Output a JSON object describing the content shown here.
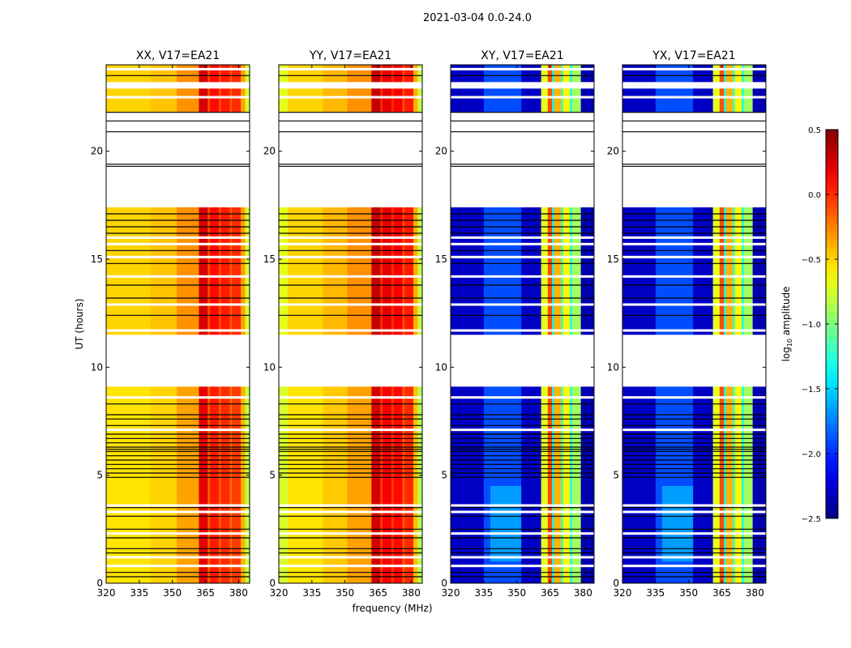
{
  "chart_data": {
    "type": "heatmap",
    "title": "2021-03-04 0.0-24.0",
    "xlabel": "frequency (MHz)",
    "ylabel": "UT (hours)",
    "xlim": [
      320,
      385
    ],
    "ylim": [
      0,
      24
    ],
    "xticks": [
      "320",
      "335",
      "350",
      "365",
      "380"
    ],
    "yticks": [
      "0",
      "5",
      "10",
      "15",
      "20"
    ],
    "colormap": "jet",
    "colorbar": {
      "label_main": "log",
      "label_sub": "10",
      "label_rest": " amplitude",
      "range": [
        -2.5,
        0.5
      ],
      "ticks": [
        "0.5",
        "0.0",
        "−0.5",
        "−1.0",
        "−1.5",
        "−2.0",
        "−2.5"
      ],
      "tick_values": [
        0.5,
        0.0,
        -0.5,
        -1.0,
        -1.5,
        -2.0,
        -2.5
      ]
    },
    "data_segments_hours": [
      [
        0,
        9.1
      ],
      [
        11.5,
        17.4
      ],
      [
        21.8,
        22.9
      ],
      [
        23.2,
        24
      ]
    ],
    "flag_lines_hours": [
      0.3,
      0.5,
      1.4,
      1.6,
      2.1,
      2.5,
      3.1,
      3.5,
      4.9,
      5.1,
      5.3,
      5.5,
      5.7,
      5.9,
      6.1,
      6.2,
      6.3,
      6.5,
      6.7,
      6.9,
      7.3,
      7.6,
      7.8,
      8.3,
      12.4,
      13.2,
      13.8,
      14.8,
      15.4,
      16.2,
      16.5,
      16.8,
      17.1,
      19.3,
      19.4,
      20.9,
      21.4,
      21.8,
      23.5
    ],
    "panels": [
      {
        "title": "XX, V17=EA21",
        "kind": "auto",
        "bands": [
          [
            320,
            340,
            -0.5
          ],
          [
            340,
            352,
            -0.45
          ],
          [
            352,
            362,
            -0.3
          ],
          [
            362,
            366,
            0.25
          ],
          [
            366,
            367,
            -0.1
          ],
          [
            367,
            371,
            0.1
          ],
          [
            371,
            372,
            -0.1
          ],
          [
            372,
            376,
            0.05
          ],
          [
            376,
            377,
            -0.15
          ],
          [
            377,
            381,
            0.0
          ],
          [
            381,
            383,
            -0.35
          ],
          [
            383,
            385,
            -0.75
          ]
        ]
      },
      {
        "title": "YY, V17=EA21",
        "kind": "auto",
        "bands": [
          [
            320,
            324,
            -0.7
          ],
          [
            324,
            340,
            -0.5
          ],
          [
            340,
            351,
            -0.42
          ],
          [
            351,
            362,
            -0.3
          ],
          [
            362,
            366,
            0.3
          ],
          [
            366,
            367,
            0.0
          ],
          [
            367,
            371,
            0.2
          ],
          [
            371,
            372,
            0.0
          ],
          [
            372,
            376,
            0.15
          ],
          [
            376,
            377,
            -0.1
          ],
          [
            377,
            381,
            0.05
          ],
          [
            381,
            383,
            -0.4
          ],
          [
            383,
            385,
            -0.8
          ]
        ]
      },
      {
        "title": "XY, V17=EA21",
        "kind": "cross",
        "bands": [
          [
            320,
            335,
            -2.3
          ],
          [
            335,
            352,
            -1.9
          ],
          [
            352,
            361,
            -2.3
          ],
          [
            361,
            364,
            -0.7
          ],
          [
            364,
            366,
            -0.1
          ],
          [
            366,
            367,
            -1.3
          ],
          [
            367,
            370,
            -0.4
          ],
          [
            370,
            371,
            -1.2
          ],
          [
            371,
            374,
            -0.6
          ],
          [
            374,
            375,
            -1.3
          ],
          [
            375,
            379,
            -0.9
          ],
          [
            379,
            385,
            -2.35
          ]
        ]
      },
      {
        "title": "YX, V17=EA21",
        "kind": "cross",
        "bands": [
          [
            320,
            335,
            -2.3
          ],
          [
            335,
            352,
            -1.9
          ],
          [
            352,
            361,
            -2.3
          ],
          [
            361,
            364,
            -0.7
          ],
          [
            364,
            366,
            -0.1
          ],
          [
            366,
            367,
            -1.3
          ],
          [
            367,
            370,
            -0.4
          ],
          [
            370,
            371,
            -1.2
          ],
          [
            371,
            374,
            -0.6
          ],
          [
            374,
            375,
            -1.3
          ],
          [
            375,
            379,
            -0.9
          ],
          [
            379,
            385,
            -2.35
          ]
        ]
      }
    ]
  }
}
